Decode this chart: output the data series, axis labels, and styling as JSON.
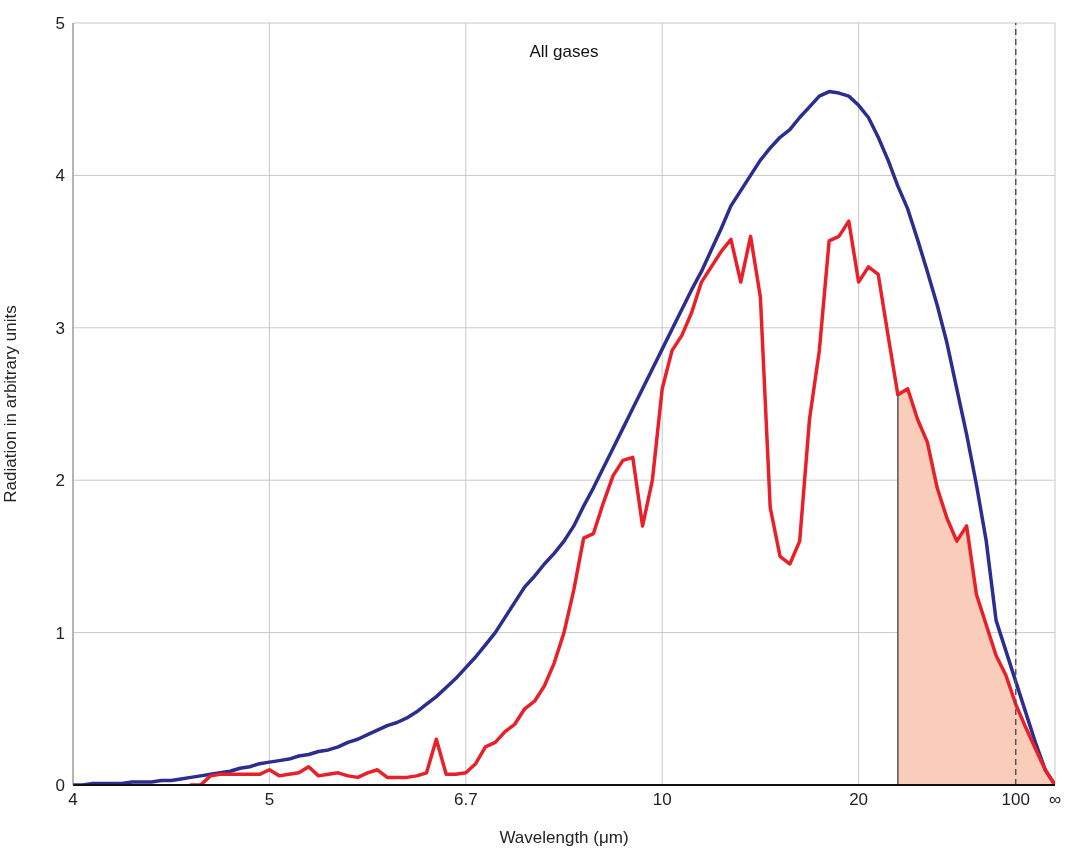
{
  "chart_data": {
    "type": "line",
    "title": "All gases",
    "xlabel": "Wavelength (μm)",
    "ylabel": "Radiation in arbitrary units",
    "categories": [
      "4",
      null,
      null,
      null,
      null,
      null,
      null,
      null,
      null,
      null,
      null,
      null,
      null,
      null,
      null,
      null,
      null,
      null,
      null,
      null,
      "5",
      null,
      null,
      null,
      null,
      null,
      null,
      null,
      null,
      null,
      null,
      null,
      null,
      null,
      null,
      null,
      null,
      null,
      null,
      null,
      "6.7",
      null,
      null,
      null,
      null,
      null,
      null,
      null,
      null,
      null,
      null,
      null,
      null,
      null,
      null,
      null,
      null,
      null,
      null,
      null,
      "10",
      null,
      null,
      null,
      null,
      null,
      null,
      null,
      null,
      null,
      null,
      null,
      null,
      null,
      null,
      null,
      null,
      null,
      null,
      null,
      "20",
      null,
      null,
      null,
      null,
      null,
      null,
      null,
      null,
      null,
      null,
      null,
      null,
      null,
      null,
      null,
      "100",
      null,
      null,
      null,
      "∞"
    ],
    "ylim": [
      0,
      5
    ],
    "yticks": [
      0,
      1,
      2,
      3,
      4,
      5
    ],
    "grid": true,
    "series": [
      {
        "type": "area",
        "color": "#f9cdb9",
        "values": [
          null,
          null,
          null,
          null,
          null,
          null,
          null,
          null,
          null,
          null,
          null,
          null,
          null,
          null,
          null,
          null,
          null,
          null,
          null,
          null,
          null,
          null,
          null,
          null,
          null,
          null,
          null,
          null,
          null,
          null,
          null,
          null,
          null,
          null,
          null,
          null,
          null,
          null,
          null,
          null,
          null,
          null,
          null,
          null,
          null,
          null,
          null,
          null,
          null,
          null,
          null,
          null,
          null,
          null,
          null,
          null,
          null,
          null,
          null,
          null,
          null,
          null,
          null,
          null,
          null,
          null,
          null,
          null,
          null,
          null,
          null,
          null,
          null,
          null,
          null,
          null,
          null,
          null,
          null,
          null,
          null,
          null,
          null,
          null,
          2.56,
          2.6,
          2.4,
          2.25,
          1.95,
          1.75,
          1.6,
          1.7,
          1.25,
          1.05,
          0.85,
          0.72,
          0.53,
          0.38,
          0.24,
          0.1,
          0
        ]
      },
      {
        "color": "#2b2d8f",
        "values": [
          0,
          0,
          0.01,
          0.01,
          0.01,
          0.01,
          0.02,
          0.02,
          0.02,
          0.03,
          0.03,
          0.04,
          0.05,
          0.06,
          0.07,
          0.08,
          0.09,
          0.11,
          0.12,
          0.14,
          0.15,
          0.16,
          0.17,
          0.19,
          0.2,
          0.22,
          0.23,
          0.25,
          0.28,
          0.3,
          0.33,
          0.36,
          0.39,
          0.41,
          0.44,
          0.48,
          0.53,
          0.58,
          0.64,
          0.7,
          0.77,
          0.84,
          0.92,
          1.0,
          1.1,
          1.2,
          1.3,
          1.37,
          1.45,
          1.52,
          1.6,
          1.7,
          1.83,
          1.95,
          2.08,
          2.21,
          2.34,
          2.47,
          2.6,
          2.73,
          2.86,
          2.99,
          3.12,
          3.25,
          3.37,
          3.51,
          3.65,
          3.8,
          3.9,
          4.0,
          4.1,
          4.18,
          4.25,
          4.3,
          4.38,
          4.45,
          4.52,
          4.55,
          4.54,
          4.52,
          4.46,
          4.38,
          4.25,
          4.1,
          3.93,
          3.78,
          3.58,
          3.37,
          3.15,
          2.9,
          2.6,
          2.3,
          1.97,
          1.6,
          1.08,
          0.88,
          0.68,
          0.48,
          0.28,
          0.1,
          0
        ]
      },
      {
        "color": "#e8202a",
        "values": [
          null,
          null,
          null,
          null,
          null,
          null,
          null,
          null,
          null,
          null,
          null,
          null,
          0,
          0,
          0.06,
          0.07,
          0.07,
          0.07,
          0.07,
          0.07,
          0.1,
          0.06,
          0.07,
          0.08,
          0.12,
          0.06,
          0.07,
          0.08,
          0.06,
          0.05,
          0.08,
          0.1,
          0.05,
          0.05,
          0.05,
          0.06,
          0.08,
          0.3,
          0.07,
          0.07,
          0.08,
          0.14,
          0.25,
          0.28,
          0.35,
          0.4,
          0.5,
          0.55,
          0.65,
          0.8,
          1.0,
          1.28,
          1.62,
          1.65,
          1.85,
          2.03,
          2.13,
          2.15,
          1.7,
          2.0,
          2.6,
          2.85,
          2.95,
          3.1,
          3.3,
          3.4,
          3.5,
          3.58,
          3.3,
          3.6,
          3.2,
          1.82,
          1.5,
          1.45,
          1.6,
          2.4,
          2.85,
          3.57,
          3.6,
          3.7,
          3.3,
          3.4,
          3.35,
          2.95,
          2.56,
          2.6,
          2.4,
          2.25,
          1.95,
          1.75,
          1.6,
          1.7,
          1.25,
          1.05,
          0.85,
          0.72,
          0.53,
          0.38,
          0.24,
          0.1,
          0
        ]
      }
    ],
    "ref_lines": [
      {
        "axis": "x",
        "value": "100",
        "color": "#555555",
        "line_style": "dashed"
      }
    ]
  }
}
